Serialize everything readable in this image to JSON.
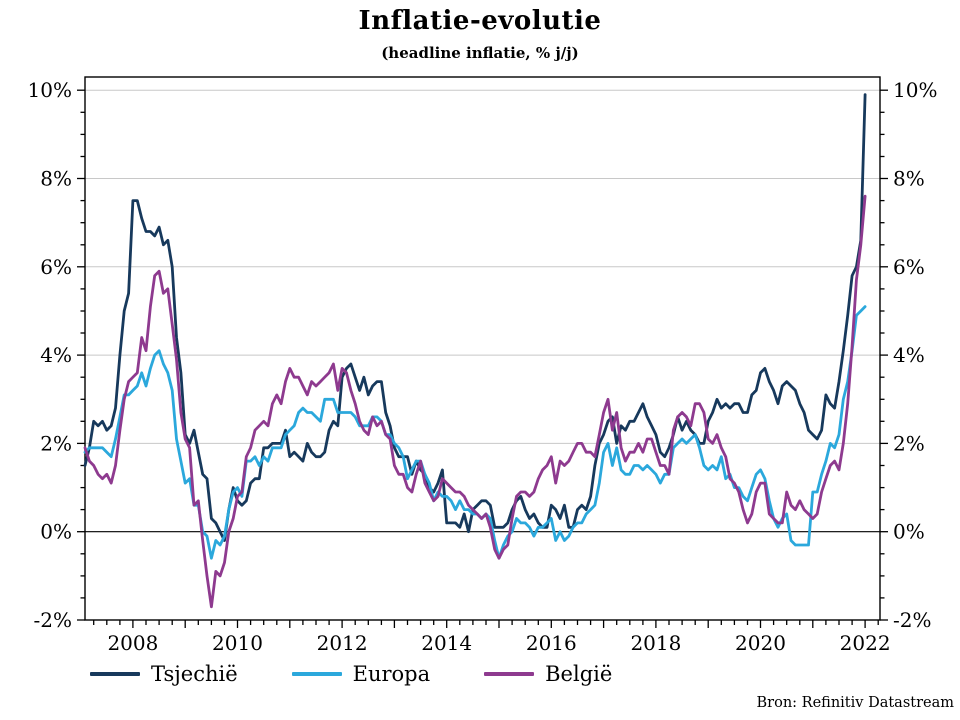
{
  "title": "Inflatie-evolutie",
  "subtitle": "(headline inflatie, % j/j)",
  "source": "Bron: Refinitiv Datastream",
  "colors": {
    "grid": "#c8c8c8",
    "axis": "#000000",
    "zero_line": "#000000",
    "background": "#ffffff"
  },
  "chart_data": {
    "type": "line",
    "title": "Inflatie-evolutie",
    "subtitle": "(headline inflatie, % j/j)",
    "ylabel": "headline inflatie, % j/j",
    "legend_position": "bottom-left",
    "grid": "horizontal",
    "x_axis": {
      "range_years": [
        2007.08,
        2022.37
      ],
      "label_years": [
        2008,
        2010,
        2012,
        2014,
        2016,
        2018,
        2020,
        2022
      ],
      "labels": [
        "2008",
        "2010",
        "2012",
        "2014",
        "2016",
        "2018",
        "2020",
        "2022"
      ],
      "major_tick_interval_years": 1,
      "minor_tick_interval_years": 0.25
    },
    "y_axis": {
      "range": [
        -2,
        10.3
      ],
      "major_ticks": [
        -2,
        0,
        2,
        4,
        6,
        8,
        10
      ],
      "labels": [
        "-2%",
        "0%",
        "2%",
        "4%",
        "6%",
        "8%",
        "10%"
      ],
      "minor_tick_interval": 0.5,
      "gridlines": [
        2,
        4,
        6,
        8,
        10
      ],
      "zero_line": 0,
      "labels_on_both_sides": true
    },
    "frequency": "monthly",
    "start_year_decimal": 2007.0833,
    "series": [
      {
        "name": "Tsjechië",
        "color": "#17395c",
        "values": [
          1.5,
          1.9,
          2.5,
          2.4,
          2.5,
          2.3,
          2.4,
          2.8,
          4.0,
          5.0,
          5.4,
          7.5,
          7.5,
          7.1,
          6.8,
          6.8,
          6.7,
          6.9,
          6.5,
          6.6,
          6.0,
          4.4,
          3.6,
          2.2,
          2.0,
          2.3,
          1.8,
          1.3,
          1.2,
          0.3,
          0.2,
          0.0,
          -0.2,
          0.5,
          1.0,
          0.7,
          0.6,
          0.7,
          1.1,
          1.2,
          1.2,
          1.9,
          1.9,
          2.0,
          2.0,
          2.0,
          2.3,
          1.7,
          1.8,
          1.7,
          1.6,
          2.0,
          1.8,
          1.7,
          1.7,
          1.8,
          2.3,
          2.5,
          2.4,
          3.5,
          3.7,
          3.8,
          3.5,
          3.2,
          3.5,
          3.1,
          3.3,
          3.4,
          3.4,
          2.7,
          2.4,
          1.9,
          1.7,
          1.7,
          1.7,
          1.3,
          1.6,
          1.4,
          1.3,
          1.0,
          0.9,
          1.1,
          1.4,
          0.2,
          0.2,
          0.2,
          0.1,
          0.4,
          0.0,
          0.5,
          0.6,
          0.7,
          0.7,
          0.6,
          0.1,
          0.1,
          0.1,
          0.2,
          0.5,
          0.7,
          0.8,
          0.5,
          0.3,
          0.4,
          0.2,
          0.1,
          0.1,
          0.6,
          0.5,
          0.3,
          0.6,
          0.1,
          0.1,
          0.5,
          0.6,
          0.5,
          0.8,
          1.5,
          2.0,
          2.2,
          2.5,
          2.6,
          2.0,
          2.4,
          2.3,
          2.5,
          2.5,
          2.7,
          2.9,
          2.6,
          2.4,
          2.2,
          1.8,
          1.7,
          1.9,
          2.2,
          2.6,
          2.3,
          2.5,
          2.3,
          2.2,
          2.0,
          2.0,
          2.5,
          2.7,
          3.0,
          2.8,
          2.9,
          2.8,
          2.9,
          2.9,
          2.7,
          2.7,
          3.1,
          3.2,
          3.6,
          3.7,
          3.4,
          3.2,
          2.9,
          3.3,
          3.4,
          3.3,
          3.2,
          2.9,
          2.7,
          2.3,
          2.2,
          2.1,
          2.3,
          3.1,
          2.9,
          2.8,
          3.4,
          4.1,
          4.9,
          5.8,
          6.0,
          6.6,
          9.9
        ]
      },
      {
        "name": "Europa",
        "color": "#2ba8dc",
        "values": [
          1.8,
          1.9,
          1.9,
          1.9,
          1.9,
          1.8,
          1.7,
          2.1,
          2.6,
          3.1,
          3.1,
          3.2,
          3.3,
          3.6,
          3.3,
          3.7,
          4.0,
          4.1,
          3.8,
          3.6,
          3.2,
          2.1,
          1.6,
          1.1,
          1.2,
          0.6,
          0.6,
          0.0,
          -0.1,
          -0.6,
          -0.2,
          -0.3,
          -0.1,
          0.5,
          0.9,
          1.0,
          0.8,
          1.6,
          1.6,
          1.7,
          1.5,
          1.7,
          1.6,
          1.9,
          1.9,
          1.9,
          2.2,
          2.3,
          2.4,
          2.7,
          2.8,
          2.7,
          2.7,
          2.6,
          2.5,
          3.0,
          3.0,
          3.0,
          2.7,
          2.7,
          2.7,
          2.7,
          2.6,
          2.4,
          2.4,
          2.4,
          2.6,
          2.6,
          2.5,
          2.2,
          2.2,
          2.0,
          1.9,
          1.7,
          1.2,
          1.4,
          1.6,
          1.6,
          1.3,
          1.1,
          0.7,
          0.9,
          0.8,
          0.8,
          0.7,
          0.5,
          0.7,
          0.5,
          0.5,
          0.4,
          0.4,
          0.3,
          0.4,
          0.3,
          -0.2,
          -0.6,
          -0.3,
          -0.1,
          0.0,
          0.3,
          0.2,
          0.2,
          0.1,
          -0.1,
          0.1,
          0.1,
          0.2,
          0.3,
          -0.2,
          0.0,
          -0.2,
          -0.1,
          0.1,
          0.2,
          0.2,
          0.4,
          0.5,
          0.6,
          1.1,
          1.8,
          2.0,
          1.5,
          1.9,
          1.4,
          1.3,
          1.3,
          1.5,
          1.5,
          1.4,
          1.5,
          1.4,
          1.3,
          1.1,
          1.3,
          1.3,
          1.9,
          2.0,
          2.1,
          2.0,
          2.1,
          2.2,
          1.9,
          1.5,
          1.4,
          1.5,
          1.4,
          1.7,
          1.2,
          1.3,
          1.0,
          1.0,
          0.8,
          0.7,
          1.0,
          1.3,
          1.4,
          1.2,
          0.7,
          0.3,
          0.1,
          0.3,
          0.4,
          -0.2,
          -0.3,
          -0.3,
          -0.3,
          -0.3,
          0.9,
          0.9,
          1.3,
          1.6,
          2.0,
          1.9,
          2.2,
          3.0,
          3.4,
          4.1,
          4.9,
          5.0,
          5.1
        ]
      },
      {
        "name": "België",
        "color": "#8e3a8f",
        "values": [
          1.9,
          1.6,
          1.5,
          1.3,
          1.2,
          1.3,
          1.1,
          1.5,
          2.3,
          3.0,
          3.4,
          3.5,
          3.6,
          4.4,
          4.1,
          5.1,
          5.8,
          5.9,
          5.4,
          5.5,
          4.7,
          3.9,
          2.7,
          2.1,
          1.9,
          0.6,
          0.7,
          -0.2,
          -1.0,
          -1.7,
          -0.9,
          -1.0,
          -0.7,
          0.0,
          0.3,
          0.8,
          0.9,
          1.7,
          1.9,
          2.3,
          2.4,
          2.5,
          2.4,
          2.9,
          3.1,
          2.9,
          3.4,
          3.7,
          3.5,
          3.5,
          3.3,
          3.1,
          3.4,
          3.3,
          3.4,
          3.5,
          3.6,
          3.8,
          3.2,
          3.7,
          3.6,
          3.2,
          2.9,
          2.5,
          2.3,
          2.2,
          2.6,
          2.4,
          2.5,
          2.2,
          2.1,
          1.5,
          1.3,
          1.3,
          1.0,
          0.9,
          1.3,
          1.6,
          1.1,
          0.9,
          0.7,
          0.8,
          1.2,
          1.1,
          1.0,
          0.9,
          0.9,
          0.8,
          0.6,
          0.5,
          0.4,
          0.3,
          0.4,
          0.1,
          -0.4,
          -0.6,
          -0.4,
          -0.3,
          0.3,
          0.8,
          0.9,
          0.9,
          0.8,
          0.9,
          1.2,
          1.4,
          1.5,
          1.7,
          1.1,
          1.6,
          1.5,
          1.6,
          1.8,
          2.0,
          2.0,
          1.8,
          1.8,
          1.7,
          2.2,
          2.7,
          3.0,
          2.3,
          2.7,
          1.9,
          1.6,
          1.8,
          1.8,
          2.0,
          1.8,
          2.1,
          2.1,
          1.8,
          1.5,
          1.5,
          1.3,
          2.3,
          2.6,
          2.7,
          2.6,
          2.4,
          2.9,
          2.9,
          2.7,
          2.1,
          2.0,
          2.2,
          1.9,
          1.7,
          1.2,
          1.1,
          0.9,
          0.5,
          0.2,
          0.4,
          0.9,
          1.1,
          1.1,
          0.4,
          0.3,
          0.2,
          0.2,
          0.9,
          0.6,
          0.5,
          0.7,
          0.5,
          0.4,
          0.3,
          0.4,
          0.9,
          1.2,
          1.5,
          1.6,
          1.4,
          2.0,
          2.9,
          4.2,
          5.7,
          6.5,
          7.6
        ]
      }
    ]
  }
}
